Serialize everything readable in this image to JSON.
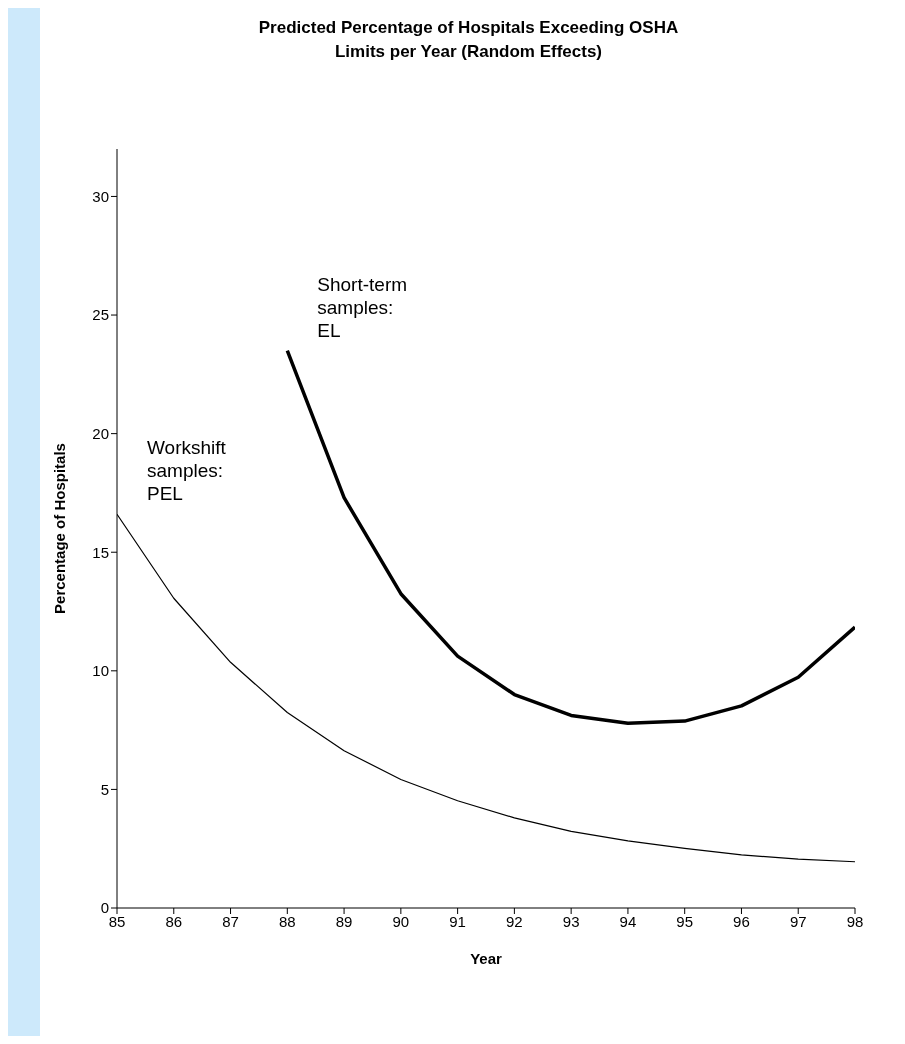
{
  "chart_data": {
    "type": "line",
    "title": "Predicted Percentage of Hospitals Exceeding OSHA Limits per Year (Random Effects)",
    "xlabel": "Year",
    "ylabel": "Percentage of Hospitals",
    "x": [
      85,
      86,
      87,
      88,
      89,
      90,
      91,
      92,
      93,
      94,
      95,
      96,
      97,
      98
    ],
    "series": [
      {
        "name": "Workshift samples: PEL",
        "color": "#000000",
        "values": [
          16.6,
          13.06,
          10.36,
          8.24,
          6.63,
          5.42,
          4.52,
          3.8,
          3.23,
          2.83,
          2.51,
          2.24,
          2.06,
          1.95
        ]
      },
      {
        "name": "Short-term samples: EL",
        "color": "#000000",
        "values": [
          null,
          null,
          null,
          23.5,
          17.3,
          13.25,
          10.62,
          9.0,
          8.12,
          7.79,
          7.88,
          8.52,
          9.73,
          11.84
        ]
      }
    ],
    "xlim": [
      85,
      98
    ],
    "xticks": [
      85,
      86,
      87,
      88,
      89,
      90,
      91,
      92,
      93,
      94,
      95,
      96,
      97,
      98
    ],
    "ylim": [
      0,
      32
    ],
    "yticks": [
      0,
      5,
      10,
      15,
      20,
      25,
      30
    ],
    "grid": false,
    "legend": false,
    "marker": "none",
    "line_style": "solid"
  }
}
